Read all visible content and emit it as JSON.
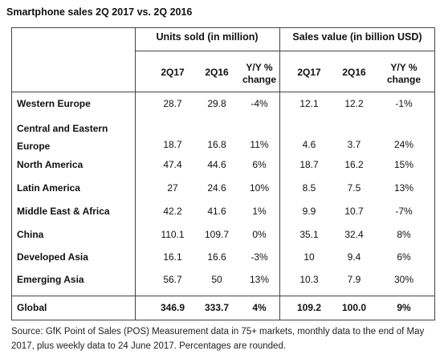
{
  "title": "Smartphone sales 2Q 2017 vs. 2Q 2016",
  "groups": {
    "units": "Units sold (in million)",
    "sales": "Sales value (in billion USD)"
  },
  "subheaders": {
    "units": [
      "2Q17",
      "2Q16",
      "Y/Y %\nchange"
    ],
    "sales": [
      "2Q17",
      "2Q16",
      "Y/Y %\nchange"
    ]
  },
  "rows": [
    {
      "region": "Western Europe",
      "values": [
        "28.7",
        "29.8",
        "-4%",
        "12.1",
        "12.2",
        "-1%"
      ]
    },
    {
      "region": "Central and Eastern\nEurope",
      "values": [
        "18.7",
        "16.8",
        "11%",
        "4.6",
        "3.7",
        "24%"
      ]
    },
    {
      "region": "North America",
      "values": [
        "47.4",
        "44.6",
        "6%",
        "18.7",
        "16.2",
        "15%"
      ]
    },
    {
      "region": "Latin America",
      "values": [
        "27",
        "24.6",
        "10%",
        "8.5",
        "7.5",
        "13%"
      ]
    },
    {
      "region": "Middle East & Africa",
      "values": [
        "42.2",
        "41.6",
        "1%",
        "9.9",
        "10.7",
        "-7%"
      ]
    },
    {
      "region": "China",
      "values": [
        "110.1",
        "109.7",
        "0%",
        "35.1",
        "32.4",
        "8%"
      ]
    },
    {
      "region": "Developed Asia",
      "values": [
        "16.1",
        "16.6",
        "-3%",
        "10",
        "9.4",
        "6%"
      ]
    },
    {
      "region": "Emerging Asia",
      "values": [
        "56.7",
        "50",
        "13%",
        "10.3",
        "7.9",
        "30%"
      ]
    }
  ],
  "total": {
    "region": "Global",
    "values": [
      "346.9",
      "333.7",
      "4%",
      "109.2",
      "100.0",
      "9%"
    ]
  },
  "source": "Source: GfK Point of Sales (POS) Measurement data in 75+ markets, monthly data to the end of May 2017, plus weekly data to 24 June 2017. Percentages are rounded.",
  "chart_data": {
    "type": "table",
    "title": "Smartphone sales 2Q 2017 vs. 2Q 2016",
    "columns": [
      "",
      "Units sold 2Q17",
      "Units sold 2Q16",
      "Units Y/Y % change",
      "Sales value 2Q17",
      "Sales value 2Q16",
      "Sales value Y/Y % change"
    ],
    "regions": [
      "Western Europe",
      "Central and Eastern Europe",
      "North America",
      "Latin America",
      "Middle East & Africa",
      "China",
      "Developed Asia",
      "Emerging Asia",
      "Global"
    ],
    "units_sold_2Q17": [
      28.7,
      18.7,
      47.4,
      27,
      42.2,
      110.1,
      16.1,
      56.7,
      346.9
    ],
    "units_sold_2Q16": [
      29.8,
      16.8,
      44.6,
      24.6,
      41.6,
      109.7,
      16.6,
      50,
      333.7
    ],
    "units_yoy_pct": [
      -4,
      11,
      6,
      10,
      1,
      0,
      -3,
      13,
      4
    ],
    "sales_value_2Q17": [
      12.1,
      4.6,
      18.7,
      8.5,
      9.9,
      35.1,
      10,
      10.3,
      109.2
    ],
    "sales_value_2Q16": [
      12.2,
      3.7,
      16.2,
      7.5,
      10.7,
      32.4,
      9.4,
      7.9,
      100.0
    ],
    "sales_yoy_pct": [
      -1,
      24,
      15,
      13,
      -7,
      8,
      6,
      30,
      9
    ]
  }
}
